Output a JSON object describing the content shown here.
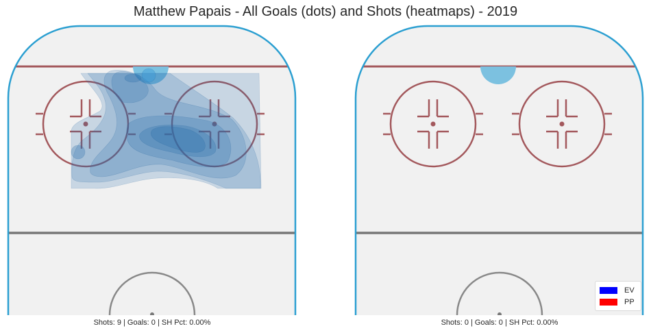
{
  "title": "Matthew Papais - All Goals (dots) and Shots (heatmaps) - 2019",
  "chart_data": [
    {
      "type": "heatmap",
      "panel": "left",
      "caption": "Shots: 9 | Goals: 0 | SH Pct: 0.00%",
      "shots": 9,
      "goals": 0,
      "sh_pct": "0.00%",
      "density_levels": 6,
      "grid": false
    },
    {
      "type": "heatmap",
      "panel": "right",
      "caption": "Shots: 0 | Goals: 0 | SH Pct: 0.00%",
      "shots": 0,
      "goals": 0,
      "sh_pct": "0.00%",
      "density_levels": 0,
      "grid": false
    }
  ],
  "legend": {
    "placement": "bottom-right",
    "items": [
      {
        "label": "EV",
        "color": "#0000ff"
      },
      {
        "label": "PP",
        "color": "#ff0000"
      }
    ]
  },
  "colors": {
    "boards": "#2b9fd1",
    "ice": "#f1f1f1",
    "red_line": "#a3585c",
    "center_line": "#777777",
    "heat": "#2a6fad"
  }
}
